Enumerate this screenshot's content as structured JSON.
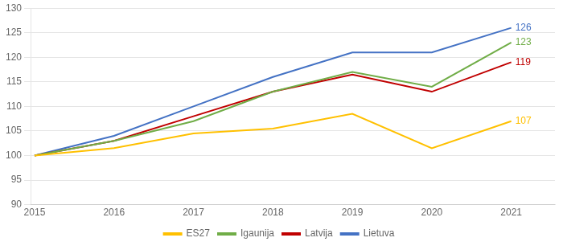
{
  "chart_data": {
    "type": "line",
    "x": [
      2015,
      2016,
      2017,
      2018,
      2019,
      2020,
      2021
    ],
    "series": [
      {
        "name": "ES27",
        "color": "#FFC000",
        "values": [
          100,
          101.5,
          104.5,
          105.5,
          108.5,
          101.5,
          107
        ]
      },
      {
        "name": "Igaunija",
        "color": "#70AD47",
        "values": [
          100,
          103,
          107,
          113,
          117,
          114,
          123
        ]
      },
      {
        "name": "Latvija",
        "color": "#C00000",
        "values": [
          100,
          103,
          108,
          113,
          116.5,
          113,
          119
        ]
      },
      {
        "name": "Lietuva",
        "color": "#4472C4",
        "values": [
          100,
          104,
          110,
          116,
          121,
          121,
          126
        ]
      }
    ],
    "annotations": [
      {
        "text": "107",
        "x": 2021,
        "y": 107,
        "color": "#FFC000"
      },
      {
        "text": "123",
        "x": 2021,
        "y": 123,
        "color": "#70AD47"
      },
      {
        "text": "119",
        "x": 2021,
        "y": 119,
        "color": "#C00000"
      },
      {
        "text": "126",
        "x": 2021,
        "y": 126,
        "color": "#4472C4"
      }
    ],
    "xlim": [
      2014.95,
      2021.55
    ],
    "xticks": [
      2015,
      2016,
      2017,
      2018,
      2019,
      2020,
      2021
    ],
    "ylim": [
      90,
      130
    ],
    "yticks": [
      90,
      95,
      100,
      105,
      110,
      115,
      120,
      125,
      130
    ],
    "grid": "y",
    "legend": "bottom"
  }
}
